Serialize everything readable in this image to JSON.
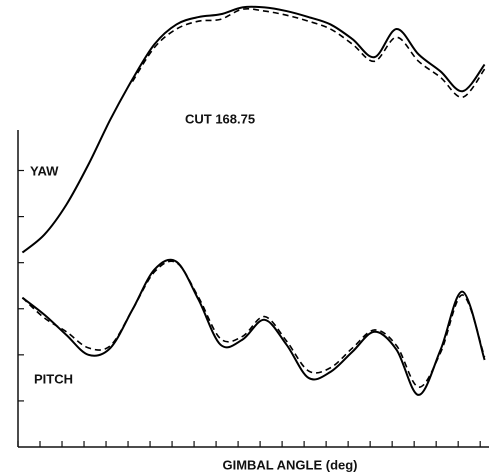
{
  "chart_data": {
    "type": "line",
    "annotations": [
      "CUT 168.75",
      "YAW",
      "PITCH"
    ],
    "x_label": "GIMBAL ANGLE (deg)",
    "x": [
      0.2,
      1.2,
      2.2,
      3.2,
      4.2,
      5.2,
      6.2,
      7.2,
      8.2,
      9.2,
      10.2,
      11.2,
      12.2,
      13.2,
      14.2,
      15.2,
      16.2,
      17.2,
      18.2,
      19.2,
      20.2,
      21.2
    ],
    "series": [
      {
        "color": "#000000",
        "dashed": false,
        "values": [
          4.22,
          4.61,
          5.26,
          6.13,
          7.11,
          7.98,
          8.74,
          9.17,
          9.33,
          9.39,
          9.54,
          9.54,
          9.46,
          9.33,
          9.17,
          8.85,
          8.46,
          9.07,
          8.52,
          8.15,
          7.72,
          8.3
        ]
      },
      {
        "color": "#000000",
        "dashed": true,
        "values": [
          null,
          null,
          null,
          null,
          null,
          7.93,
          8.67,
          9.07,
          9.24,
          9.28,
          9.5,
          9.46,
          9.37,
          9.24,
          9.07,
          8.74,
          8.37,
          8.89,
          8.37,
          8.02,
          7.59,
          8.2
        ]
      },
      {
        "color": "#000000",
        "dashed": false,
        "values": [
          3.24,
          2.87,
          2.43,
          2.0,
          2.15,
          2.98,
          3.85,
          4.02,
          3.2,
          2.22,
          2.33,
          2.76,
          2.22,
          1.5,
          1.63,
          2.07,
          2.5,
          2.11,
          1.13,
          2.11,
          3.37,
          1.89
        ]
      },
      {
        "color": "#000000",
        "dashed": true,
        "values": [
          3.24,
          2.8,
          2.5,
          2.15,
          2.2,
          2.98,
          3.8,
          4.0,
          3.25,
          2.35,
          2.4,
          2.83,
          2.3,
          1.65,
          1.72,
          2.15,
          2.54,
          2.2,
          1.3,
          2.05,
          3.3,
          1.95
        ]
      }
    ],
    "xlim": [
      0,
      21.4
    ],
    "ylim": [
      0,
      9.7
    ],
    "xticks": [
      0,
      1,
      2,
      3,
      4,
      5,
      6,
      7,
      8,
      9,
      10,
      11,
      12,
      13,
      14,
      15,
      16,
      17,
      18,
      19,
      20,
      21
    ],
    "yticks": [
      1,
      2,
      3,
      4,
      5,
      6
    ]
  }
}
